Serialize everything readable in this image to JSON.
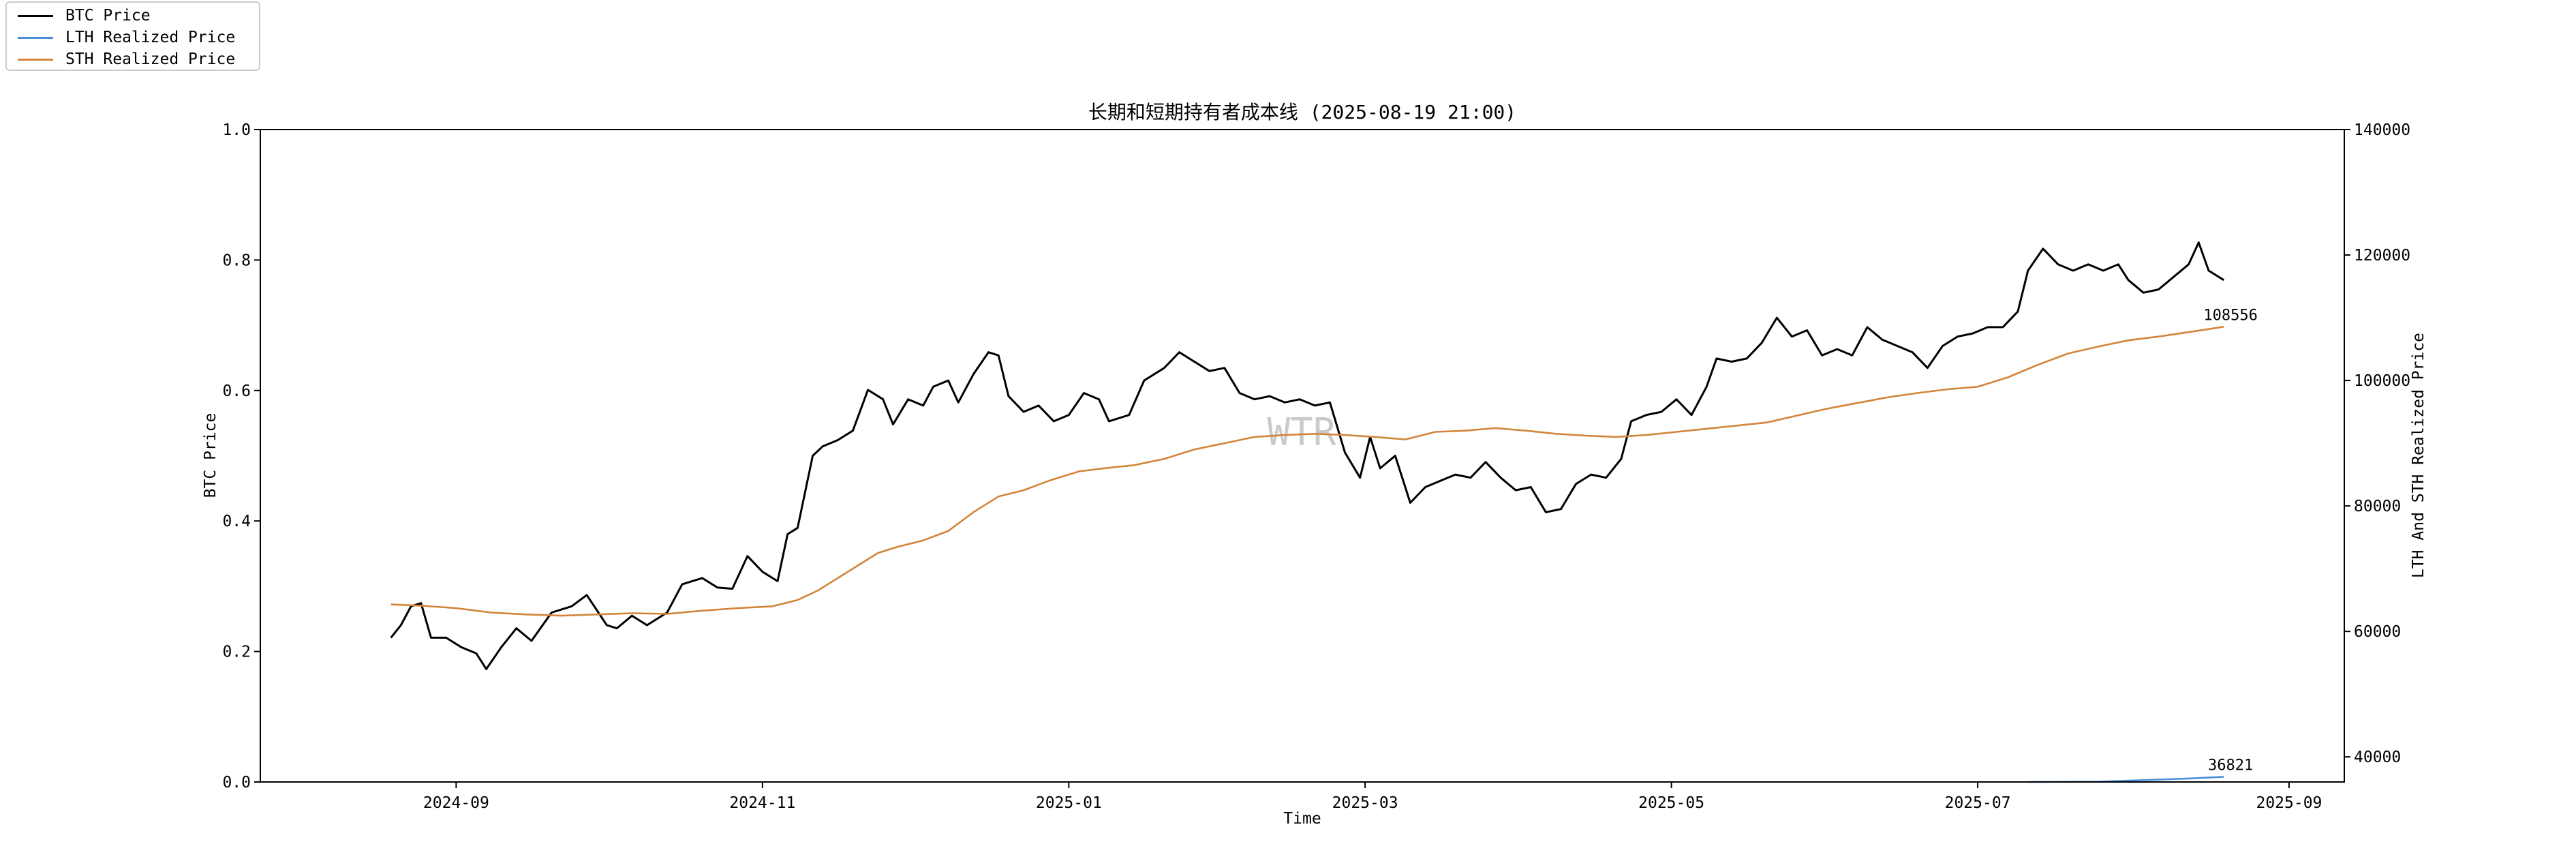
{
  "chart_data": {
    "type": "line",
    "title": "长期和短期持有者成本线 (2025-08-19 21:00)",
    "watermark": "WTR",
    "xlabel": "Time",
    "ylabel_left": "BTC Price",
    "ylabel_right": "LTH And STH Realized Price",
    "x_range": [
      "2024-07-24",
      "2025-09-12"
    ],
    "x_ticks": [
      "2024-09",
      "2024-11",
      "2025-01",
      "2025-03",
      "2025-05",
      "2025-07",
      "2025-09"
    ],
    "ylim_left": [
      0.0,
      1.0
    ],
    "y_ticks_left": [
      "0.0",
      "0.2",
      "0.4",
      "0.6",
      "0.8",
      "1.0"
    ],
    "ylim_right": [
      36000,
      140000
    ],
    "y_ticks_right": [
      "40000",
      "60000",
      "80000",
      "100000",
      "120000",
      "140000"
    ],
    "legend_position": "top-left",
    "series": [
      {
        "name": "BTC Price",
        "color": "#000000",
        "axis": "right",
        "points": [
          [
            "2024-08-19",
            59000
          ],
          [
            "2024-08-21",
            61000
          ],
          [
            "2024-08-23",
            64000
          ],
          [
            "2024-08-25",
            64500
          ],
          [
            "2024-08-27",
            59000
          ],
          [
            "2024-08-30",
            59000
          ],
          [
            "2024-09-02",
            57500
          ],
          [
            "2024-09-05",
            56500
          ],
          [
            "2024-09-07",
            54000
          ],
          [
            "2024-09-10",
            57500
          ],
          [
            "2024-09-13",
            60500
          ],
          [
            "2024-09-16",
            58500
          ],
          [
            "2024-09-20",
            63000
          ],
          [
            "2024-09-24",
            64000
          ],
          [
            "2024-09-27",
            65800
          ],
          [
            "2024-10-01",
            61000
          ],
          [
            "2024-10-03",
            60500
          ],
          [
            "2024-10-06",
            62500
          ],
          [
            "2024-10-09",
            61000
          ],
          [
            "2024-10-13",
            63000
          ],
          [
            "2024-10-16",
            67500
          ],
          [
            "2024-10-20",
            68500
          ],
          [
            "2024-10-23",
            67000
          ],
          [
            "2024-10-26",
            66800
          ],
          [
            "2024-10-29",
            72000
          ],
          [
            "2024-11-01",
            69500
          ],
          [
            "2024-11-04",
            68000
          ],
          [
            "2024-11-06",
            75500
          ],
          [
            "2024-11-08",
            76500
          ],
          [
            "2024-11-11",
            88000
          ],
          [
            "2024-11-13",
            89500
          ],
          [
            "2024-11-16",
            90500
          ],
          [
            "2024-11-19",
            92000
          ],
          [
            "2024-11-22",
            98500
          ],
          [
            "2024-11-25",
            97000
          ],
          [
            "2024-11-27",
            93000
          ],
          [
            "2024-11-30",
            97000
          ],
          [
            "2024-12-03",
            96000
          ],
          [
            "2024-12-05",
            99000
          ],
          [
            "2024-12-08",
            100000
          ],
          [
            "2024-12-10",
            96500
          ],
          [
            "2024-12-13",
            101000
          ],
          [
            "2024-12-16",
            104500
          ],
          [
            "2024-12-18",
            104000
          ],
          [
            "2024-12-20",
            97500
          ],
          [
            "2024-12-23",
            95000
          ],
          [
            "2024-12-26",
            96000
          ],
          [
            "2024-12-29",
            93500
          ],
          [
            "2025-01-01",
            94500
          ],
          [
            "2025-01-04",
            98000
          ],
          [
            "2025-01-07",
            97000
          ],
          [
            "2025-01-09",
            93500
          ],
          [
            "2025-01-13",
            94500
          ],
          [
            "2025-01-16",
            100000
          ],
          [
            "2025-01-20",
            102000
          ],
          [
            "2025-01-23",
            104500
          ],
          [
            "2025-01-26",
            103000
          ],
          [
            "2025-01-29",
            101500
          ],
          [
            "2025-02-01",
            102000
          ],
          [
            "2025-02-04",
            98000
          ],
          [
            "2025-02-07",
            97000
          ],
          [
            "2025-02-10",
            97500
          ],
          [
            "2025-02-13",
            96500
          ],
          [
            "2025-02-16",
            97000
          ],
          [
            "2025-02-19",
            96000
          ],
          [
            "2025-02-22",
            96500
          ],
          [
            "2025-02-25",
            88500
          ],
          [
            "2025-02-28",
            84500
          ],
          [
            "2025-03-02",
            91000
          ],
          [
            "2025-03-04",
            86000
          ],
          [
            "2025-03-07",
            88000
          ],
          [
            "2025-03-10",
            80500
          ],
          [
            "2025-03-13",
            83000
          ],
          [
            "2025-03-16",
            84000
          ],
          [
            "2025-03-19",
            85000
          ],
          [
            "2025-03-22",
            84500
          ],
          [
            "2025-03-25",
            87000
          ],
          [
            "2025-03-28",
            84500
          ],
          [
            "2025-03-31",
            82500
          ],
          [
            "2025-04-03",
            83000
          ],
          [
            "2025-04-06",
            79000
          ],
          [
            "2025-04-09",
            79500
          ],
          [
            "2025-04-12",
            83500
          ],
          [
            "2025-04-15",
            85000
          ],
          [
            "2025-04-18",
            84500
          ],
          [
            "2025-04-21",
            87500
          ],
          [
            "2025-04-23",
            93500
          ],
          [
            "2025-04-26",
            94500
          ],
          [
            "2025-04-29",
            95000
          ],
          [
            "2025-05-02",
            97000
          ],
          [
            "2025-05-05",
            94500
          ],
          [
            "2025-05-08",
            99000
          ],
          [
            "2025-05-10",
            103500
          ],
          [
            "2025-05-13",
            103000
          ],
          [
            "2025-05-16",
            103500
          ],
          [
            "2025-05-19",
            106000
          ],
          [
            "2025-05-22",
            110000
          ],
          [
            "2025-05-25",
            107000
          ],
          [
            "2025-05-28",
            108000
          ],
          [
            "2025-05-31",
            104000
          ],
          [
            "2025-06-03",
            105000
          ],
          [
            "2025-06-06",
            104000
          ],
          [
            "2025-06-09",
            108500
          ],
          [
            "2025-06-12",
            106500
          ],
          [
            "2025-06-15",
            105500
          ],
          [
            "2025-06-18",
            104500
          ],
          [
            "2025-06-21",
            102000
          ],
          [
            "2025-06-24",
            105500
          ],
          [
            "2025-06-27",
            107000
          ],
          [
            "2025-06-30",
            107500
          ],
          [
            "2025-07-03",
            108500
          ],
          [
            "2025-07-06",
            108500
          ],
          [
            "2025-07-09",
            111000
          ],
          [
            "2025-07-11",
            117500
          ],
          [
            "2025-07-14",
            121000
          ],
          [
            "2025-07-17",
            118500
          ],
          [
            "2025-07-20",
            117500
          ],
          [
            "2025-07-23",
            118500
          ],
          [
            "2025-07-26",
            117500
          ],
          [
            "2025-07-29",
            118500
          ],
          [
            "2025-07-31",
            116000
          ],
          [
            "2025-08-03",
            114000
          ],
          [
            "2025-08-06",
            114500
          ],
          [
            "2025-08-09",
            116500
          ],
          [
            "2025-08-12",
            118500
          ],
          [
            "2025-08-14",
            122000
          ],
          [
            "2025-08-16",
            117500
          ],
          [
            "2025-08-19",
            116000
          ]
        ]
      },
      {
        "name": "LTH Realized Price",
        "color": "#4a90d9",
        "axis": "right",
        "points": [
          [
            "2025-07-11",
            36000
          ],
          [
            "2025-07-25",
            36050
          ],
          [
            "2025-08-05",
            36350
          ],
          [
            "2025-08-12",
            36550
          ],
          [
            "2025-08-19",
            36821
          ]
        ],
        "end_label": "36821"
      },
      {
        "name": "STH Realized Price",
        "color": "#d2853a",
        "axis": "right",
        "points": [
          [
            "2024-08-19",
            64300
          ],
          [
            "2024-08-25",
            64100
          ],
          [
            "2024-09-01",
            63700
          ],
          [
            "2024-09-08",
            63000
          ],
          [
            "2024-09-15",
            62700
          ],
          [
            "2024-09-22",
            62500
          ],
          [
            "2024-09-29",
            62700
          ],
          [
            "2024-10-06",
            62900
          ],
          [
            "2024-10-13",
            62800
          ],
          [
            "2024-10-20",
            63300
          ],
          [
            "2024-10-27",
            63700
          ],
          [
            "2024-11-03",
            64000
          ],
          [
            "2024-11-08",
            65000
          ],
          [
            "2024-11-12",
            66500
          ],
          [
            "2024-11-16",
            68500
          ],
          [
            "2024-11-20",
            70500
          ],
          [
            "2024-11-24",
            72500
          ],
          [
            "2024-11-28",
            73500
          ],
          [
            "2024-12-03",
            74500
          ],
          [
            "2024-12-08",
            76000
          ],
          [
            "2024-12-13",
            79000
          ],
          [
            "2024-12-18",
            81500
          ],
          [
            "2024-12-23",
            82500
          ],
          [
            "2024-12-28",
            84000
          ],
          [
            "2025-01-03",
            85500
          ],
          [
            "2025-01-08",
            86000
          ],
          [
            "2025-01-14",
            86500
          ],
          [
            "2025-01-20",
            87500
          ],
          [
            "2025-01-26",
            89000
          ],
          [
            "2025-02-01",
            90000
          ],
          [
            "2025-02-07",
            91000
          ],
          [
            "2025-02-13",
            91300
          ],
          [
            "2025-02-19",
            91500
          ],
          [
            "2025-02-25",
            91300
          ],
          [
            "2025-03-03",
            91000
          ],
          [
            "2025-03-09",
            90600
          ],
          [
            "2025-03-15",
            91800
          ],
          [
            "2025-03-21",
            92000
          ],
          [
            "2025-03-27",
            92400
          ],
          [
            "2025-04-02",
            92000
          ],
          [
            "2025-04-08",
            91500
          ],
          [
            "2025-04-14",
            91200
          ],
          [
            "2025-04-20",
            91000
          ],
          [
            "2025-04-26",
            91300
          ],
          [
            "2025-05-02",
            91800
          ],
          [
            "2025-05-08",
            92300
          ],
          [
            "2025-05-14",
            92800
          ],
          [
            "2025-05-20",
            93300
          ],
          [
            "2025-05-26",
            94400
          ],
          [
            "2025-06-01",
            95500
          ],
          [
            "2025-06-07",
            96400
          ],
          [
            "2025-06-13",
            97300
          ],
          [
            "2025-06-19",
            98000
          ],
          [
            "2025-06-25",
            98600
          ],
          [
            "2025-07-01",
            99000
          ],
          [
            "2025-07-07",
            100500
          ],
          [
            "2025-07-13",
            102500
          ],
          [
            "2025-07-19",
            104300
          ],
          [
            "2025-07-25",
            105400
          ],
          [
            "2025-07-31",
            106400
          ],
          [
            "2025-08-06",
            107000
          ],
          [
            "2025-08-12",
            107700
          ],
          [
            "2025-08-19",
            108556
          ]
        ],
        "end_label": "108556"
      }
    ]
  }
}
